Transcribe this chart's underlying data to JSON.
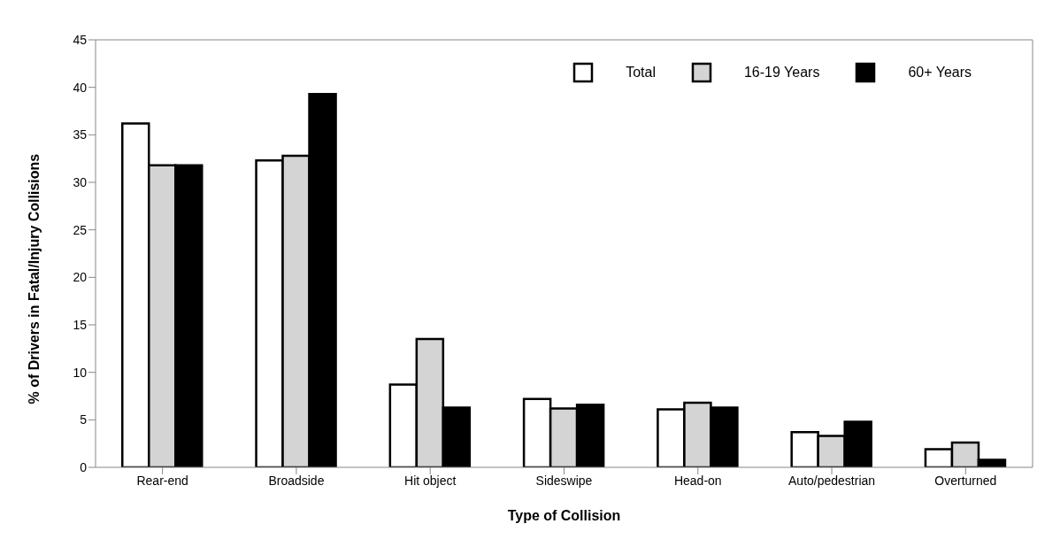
{
  "chart_data": {
    "type": "bar",
    "xlabel": "Type of Collision",
    "ylabel": "% of Drivers in Fatal/Injury Collisions",
    "categories": [
      "Rear-end",
      "Broadside",
      "Hit object",
      "Sideswipe",
      "Head-on",
      "Auto/pedestrian",
      "Overturned"
    ],
    "series": [
      {
        "name": "Total",
        "color": "#ffffff",
        "values": [
          36.2,
          32.3,
          8.7,
          7.2,
          6.1,
          3.7,
          1.9
        ]
      },
      {
        "name": "16-19 Years",
        "color": "#d4d4d4",
        "values": [
          31.8,
          32.8,
          13.5,
          6.2,
          6.8,
          3.3,
          2.6
        ]
      },
      {
        "name": "60+ Years",
        "color": "#000000",
        "values": [
          31.8,
          39.3,
          6.3,
          6.6,
          6.3,
          4.8,
          0.8
        ]
      }
    ],
    "ylim": [
      0,
      45
    ],
    "yticks": [
      0,
      5,
      10,
      15,
      20,
      25,
      30,
      35,
      40,
      45
    ],
    "grid": false,
    "legend": "top right"
  }
}
